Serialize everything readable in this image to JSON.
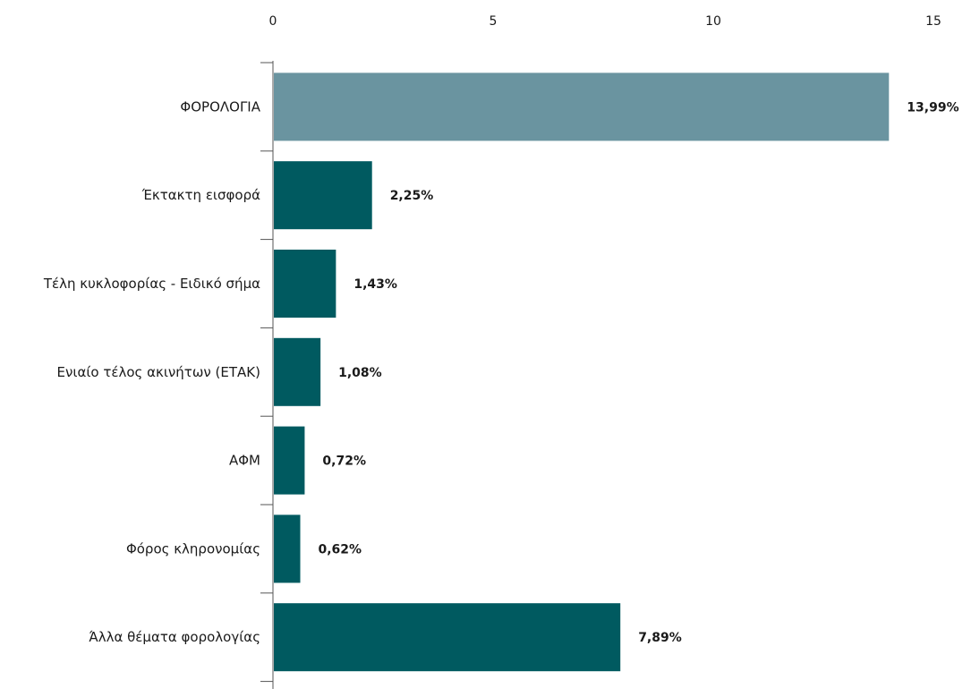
{
  "chart_data": {
    "type": "bar",
    "orientation": "horizontal",
    "title": "",
    "xlabel": "",
    "ylabel": "",
    "categories": [
      "ΦΟΡΟΛΟΓΙΑ",
      "Έκτακτη εισφορά",
      "Τέλη κυκλοφορίας - Ειδικό σήμα",
      "Ενιαίο τέλος ακινήτων (ΕΤΑΚ)",
      "ΑΦΜ",
      "Φόρος κληρονομίας",
      "Άλλα θέματα φορολογίας"
    ],
    "values": [
      13.99,
      2.25,
      1.43,
      1.08,
      0.72,
      0.62,
      7.89
    ],
    "value_labels": [
      "13,99%",
      "2,25%",
      "1,43%",
      "1,08%",
      "0,72%",
      "0,62%",
      "7,89%"
    ],
    "xlim": [
      0,
      15
    ],
    "xticks": [
      0,
      5,
      10,
      15
    ],
    "xtick_labels": [
      "0",
      "5",
      "10",
      "15"
    ],
    "x_axis_position": "top",
    "grid": false,
    "legend": "none",
    "colors": {
      "highlight": "#6a94a0",
      "default": "#005a60"
    },
    "bar_color_keys": [
      "highlight",
      "default",
      "default",
      "default",
      "default",
      "default",
      "default"
    ]
  }
}
